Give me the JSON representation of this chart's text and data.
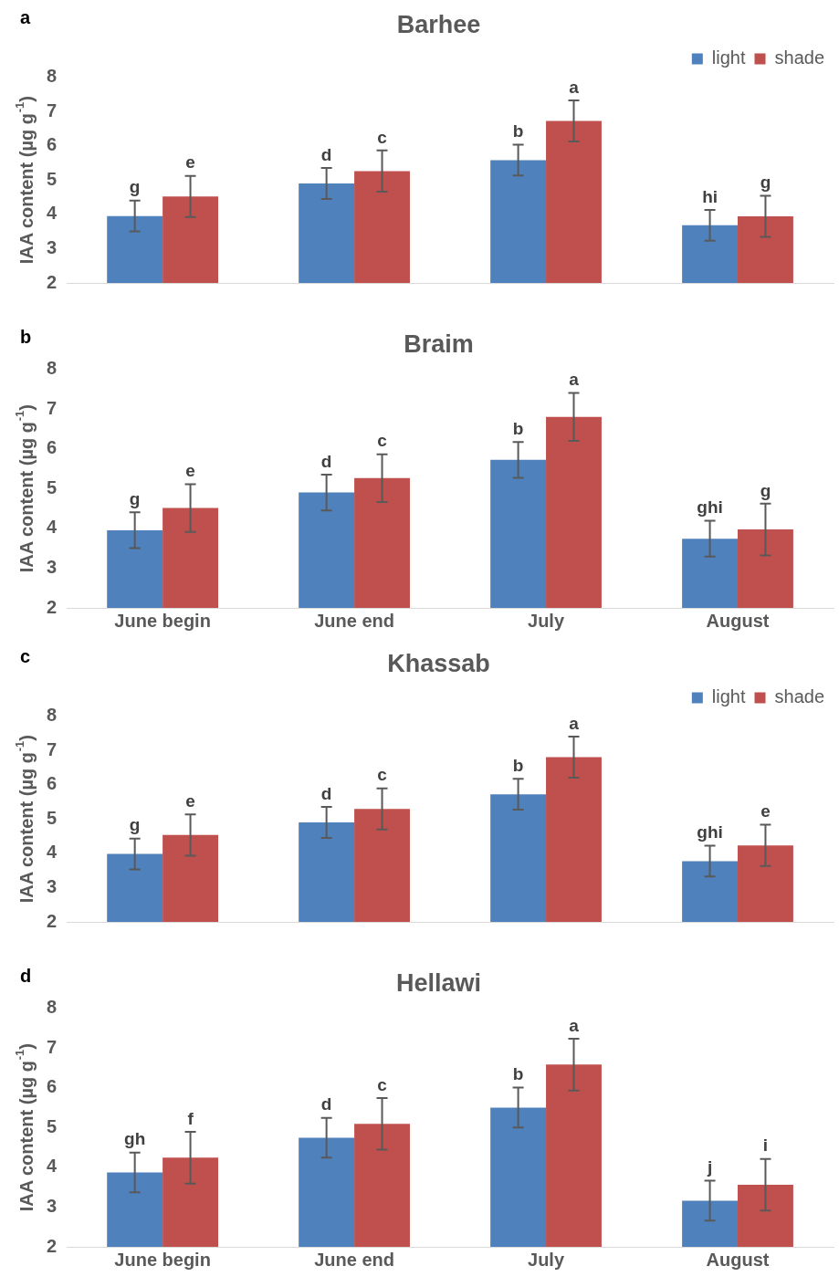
{
  "chart_data": [
    {
      "type": "bar",
      "title": "Barhee",
      "ylabel": "IAA content (µg g$^{-1}$)",
      "annotations": [
        "a"
      ],
      "categories": [
        null,
        null,
        null,
        null
      ],
      "ylim": [
        2,
        8
      ],
      "yticks": [
        2,
        3,
        4,
        5,
        6,
        7,
        8
      ],
      "legend": "top right",
      "series": [
        {
          "name": "light",
          "color": "#4f81bd",
          "values": [
            3.95,
            4.9,
            5.58,
            3.68
          ],
          "errors": [
            0.45,
            0.45,
            0.45,
            0.45
          ],
          "value_labels": [
            "g",
            "d",
            "b",
            "hi"
          ]
        },
        {
          "name": "shade",
          "color": "#c0504d",
          "values": [
            4.52,
            5.26,
            6.72,
            3.94
          ],
          "errors": [
            0.6,
            0.6,
            0.6,
            0.6
          ],
          "value_labels": [
            "e",
            "c",
            "a",
            "g"
          ]
        }
      ]
    },
    {
      "type": "bar",
      "title": "Braim",
      "ylabel": "IAA content (µg g$^{-1}$)",
      "annotations": [
        "b"
      ],
      "categories": [
        "June begin",
        "June end",
        "July",
        "August"
      ],
      "ylim": [
        2,
        8
      ],
      "yticks": [
        2,
        3,
        4,
        5,
        6,
        7,
        8
      ],
      "series": [
        {
          "color": "#4f81bd",
          "values": [
            3.95,
            4.9,
            5.72,
            3.74
          ],
          "errors": [
            0.45,
            0.45,
            0.45,
            0.45
          ],
          "value_labels": [
            "g",
            "d",
            "b",
            "ghi"
          ]
        },
        {
          "color": "#c0504d",
          "values": [
            4.51,
            5.26,
            6.8,
            3.97
          ],
          "errors": [
            0.6,
            0.6,
            0.6,
            0.65
          ],
          "value_labels": [
            "e",
            "c",
            "a",
            "g"
          ]
        }
      ]
    },
    {
      "type": "bar",
      "title": "Khassab",
      "ylabel": "IAA content (µg g$^{-1}$)",
      "annotations": [
        "c"
      ],
      "categories": [
        null,
        null,
        null,
        null
      ],
      "ylim": [
        2,
        8
      ],
      "yticks": [
        2,
        3,
        4,
        5,
        6,
        7,
        8
      ],
      "legend": "top right",
      "series": [
        {
          "name": "light",
          "color": "#4f81bd",
          "values": [
            3.98,
            4.9,
            5.72,
            3.77
          ],
          "errors": [
            0.45,
            0.45,
            0.45,
            0.45
          ],
          "value_labels": [
            "g",
            "d",
            "b",
            "ghi"
          ]
        },
        {
          "name": "shade",
          "color": "#c0504d",
          "values": [
            4.53,
            5.29,
            6.8,
            4.23
          ],
          "errors": [
            0.6,
            0.6,
            0.6,
            0.6
          ],
          "value_labels": [
            "e",
            "c",
            "a",
            "e"
          ]
        }
      ]
    },
    {
      "type": "bar",
      "title": "Hellawi",
      "ylabel": "IAA content (µg g$^{-1}$)",
      "annotations": [
        "d"
      ],
      "categories": [
        "June begin",
        "June end",
        "July",
        "August"
      ],
      "ylim": [
        2,
        8
      ],
      "yticks": [
        2,
        3,
        4,
        5,
        6,
        7,
        8
      ],
      "series": [
        {
          "color": "#4f81bd",
          "values": [
            3.87,
            4.74,
            5.5,
            3.16
          ],
          "errors": [
            0.5,
            0.5,
            0.5,
            0.5
          ],
          "value_labels": [
            "gh",
            "d",
            "b",
            "j"
          ]
        },
        {
          "color": "#c0504d",
          "values": [
            4.24,
            5.09,
            6.58,
            3.56
          ],
          "errors": [
            0.65,
            0.65,
            0.65,
            0.65
          ],
          "value_labels": [
            "f",
            "c",
            "a",
            "i"
          ]
        }
      ]
    }
  ]
}
